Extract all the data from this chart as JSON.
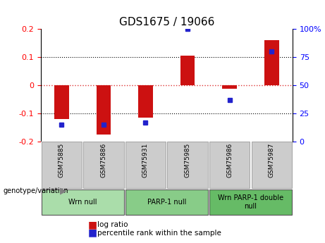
{
  "title": "GDS1675 / 19066",
  "samples": [
    "GSM75885",
    "GSM75886",
    "GSM75931",
    "GSM75985",
    "GSM75986",
    "GSM75987"
  ],
  "log_ratios": [
    -0.12,
    -0.175,
    -0.115,
    0.105,
    -0.012,
    0.16
  ],
  "percentile_ranks": [
    15,
    15,
    17,
    100,
    37,
    80
  ],
  "groups": [
    {
      "label": "Wrn null",
      "start": 0,
      "end": 2,
      "color": "#aaddaa"
    },
    {
      "label": "PARP-1 null",
      "start": 2,
      "end": 4,
      "color": "#88cc88"
    },
    {
      "label": "Wrn PARP-1 double\nnull",
      "start": 4,
      "end": 6,
      "color": "#66bb66"
    }
  ],
  "bar_color": "#cc1111",
  "dot_color": "#2222cc",
  "ylim_left": [
    -0.2,
    0.2
  ],
  "ylim_right": [
    0,
    100
  ],
  "yticks_left": [
    -0.2,
    -0.1,
    0,
    0.1,
    0.2
  ],
  "yticks_right": [
    0,
    25,
    50,
    75,
    100
  ],
  "ytick_labels_right": [
    "0",
    "25",
    "50",
    "75",
    "100%"
  ],
  "zero_line_color": "#dd3333",
  "grid_color": "black",
  "background_color": "#ffffff",
  "legend_items": [
    {
      "label": "log ratio",
      "color": "#cc1111"
    },
    {
      "label": "percentile rank within the sample",
      "color": "#2222cc"
    }
  ]
}
